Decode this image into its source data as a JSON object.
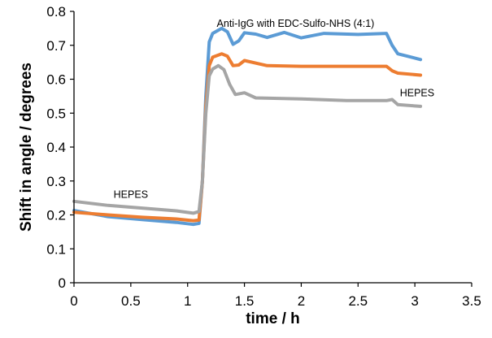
{
  "chart_data": {
    "type": "line",
    "title": "",
    "xlabel": "time / h",
    "ylabel": "Shift in angle / degrees",
    "xlim": [
      0,
      3.5
    ],
    "ylim": [
      0,
      0.8
    ],
    "xticks": [
      "0",
      "0.5",
      "1",
      "1.5",
      "2",
      "2.5",
      "3",
      "3.5"
    ],
    "yticks": [
      "0",
      "0.1",
      "0.2",
      "0.3",
      "0.4",
      "0.5",
      "0.6",
      "0.7",
      "0.8"
    ],
    "grid": false,
    "legend": "none",
    "annotations": [
      {
        "text": "HEPES",
        "x": 0.5,
        "y": 0.25
      },
      {
        "text": "Anti-IgG with EDC-Sulfo-NHS (4:1)",
        "x": 1.95,
        "y": 0.755
      },
      {
        "text": "HEPES",
        "x": 3.02,
        "y": 0.55
      }
    ],
    "series": [
      {
        "color": "#5b9bd5",
        "points": [
          [
            0,
            0.213
          ],
          [
            0.3,
            0.195
          ],
          [
            0.6,
            0.186
          ],
          [
            0.9,
            0.178
          ],
          [
            1.05,
            0.172
          ],
          [
            1.1,
            0.175
          ],
          [
            1.13,
            0.3
          ],
          [
            1.16,
            0.55
          ],
          [
            1.19,
            0.71
          ],
          [
            1.22,
            0.735
          ],
          [
            1.3,
            0.75
          ],
          [
            1.35,
            0.74
          ],
          [
            1.4,
            0.703
          ],
          [
            1.45,
            0.713
          ],
          [
            1.5,
            0.737
          ],
          [
            1.6,
            0.733
          ],
          [
            1.7,
            0.723
          ],
          [
            1.85,
            0.738
          ],
          [
            2.0,
            0.722
          ],
          [
            2.2,
            0.735
          ],
          [
            2.5,
            0.732
          ],
          [
            2.75,
            0.735
          ],
          [
            2.8,
            0.7
          ],
          [
            2.85,
            0.675
          ],
          [
            3.05,
            0.658
          ]
        ]
      },
      {
        "color": "#ed7d31",
        "points": [
          [
            0,
            0.208
          ],
          [
            0.3,
            0.2
          ],
          [
            0.6,
            0.193
          ],
          [
            0.9,
            0.188
          ],
          [
            1.05,
            0.183
          ],
          [
            1.1,
            0.185
          ],
          [
            1.13,
            0.3
          ],
          [
            1.16,
            0.52
          ],
          [
            1.19,
            0.64
          ],
          [
            1.22,
            0.665
          ],
          [
            1.3,
            0.675
          ],
          [
            1.35,
            0.668
          ],
          [
            1.4,
            0.64
          ],
          [
            1.45,
            0.642
          ],
          [
            1.5,
            0.655
          ],
          [
            1.7,
            0.64
          ],
          [
            2.0,
            0.638
          ],
          [
            2.4,
            0.638
          ],
          [
            2.75,
            0.638
          ],
          [
            2.8,
            0.625
          ],
          [
            2.85,
            0.618
          ],
          [
            3.05,
            0.612
          ]
        ]
      },
      {
        "color": "#a5a5a5",
        "points": [
          [
            0,
            0.24
          ],
          [
            0.3,
            0.228
          ],
          [
            0.6,
            0.22
          ],
          [
            0.9,
            0.212
          ],
          [
            1.05,
            0.205
          ],
          [
            1.1,
            0.21
          ],
          [
            1.13,
            0.3
          ],
          [
            1.16,
            0.5
          ],
          [
            1.19,
            0.61
          ],
          [
            1.22,
            0.63
          ],
          [
            1.27,
            0.64
          ],
          [
            1.32,
            0.628
          ],
          [
            1.37,
            0.585
          ],
          [
            1.42,
            0.555
          ],
          [
            1.5,
            0.56
          ],
          [
            1.6,
            0.545
          ],
          [
            2.0,
            0.542
          ],
          [
            2.4,
            0.537
          ],
          [
            2.75,
            0.537
          ],
          [
            2.8,
            0.54
          ],
          [
            2.85,
            0.525
          ],
          [
            3.05,
            0.52
          ]
        ]
      }
    ]
  }
}
